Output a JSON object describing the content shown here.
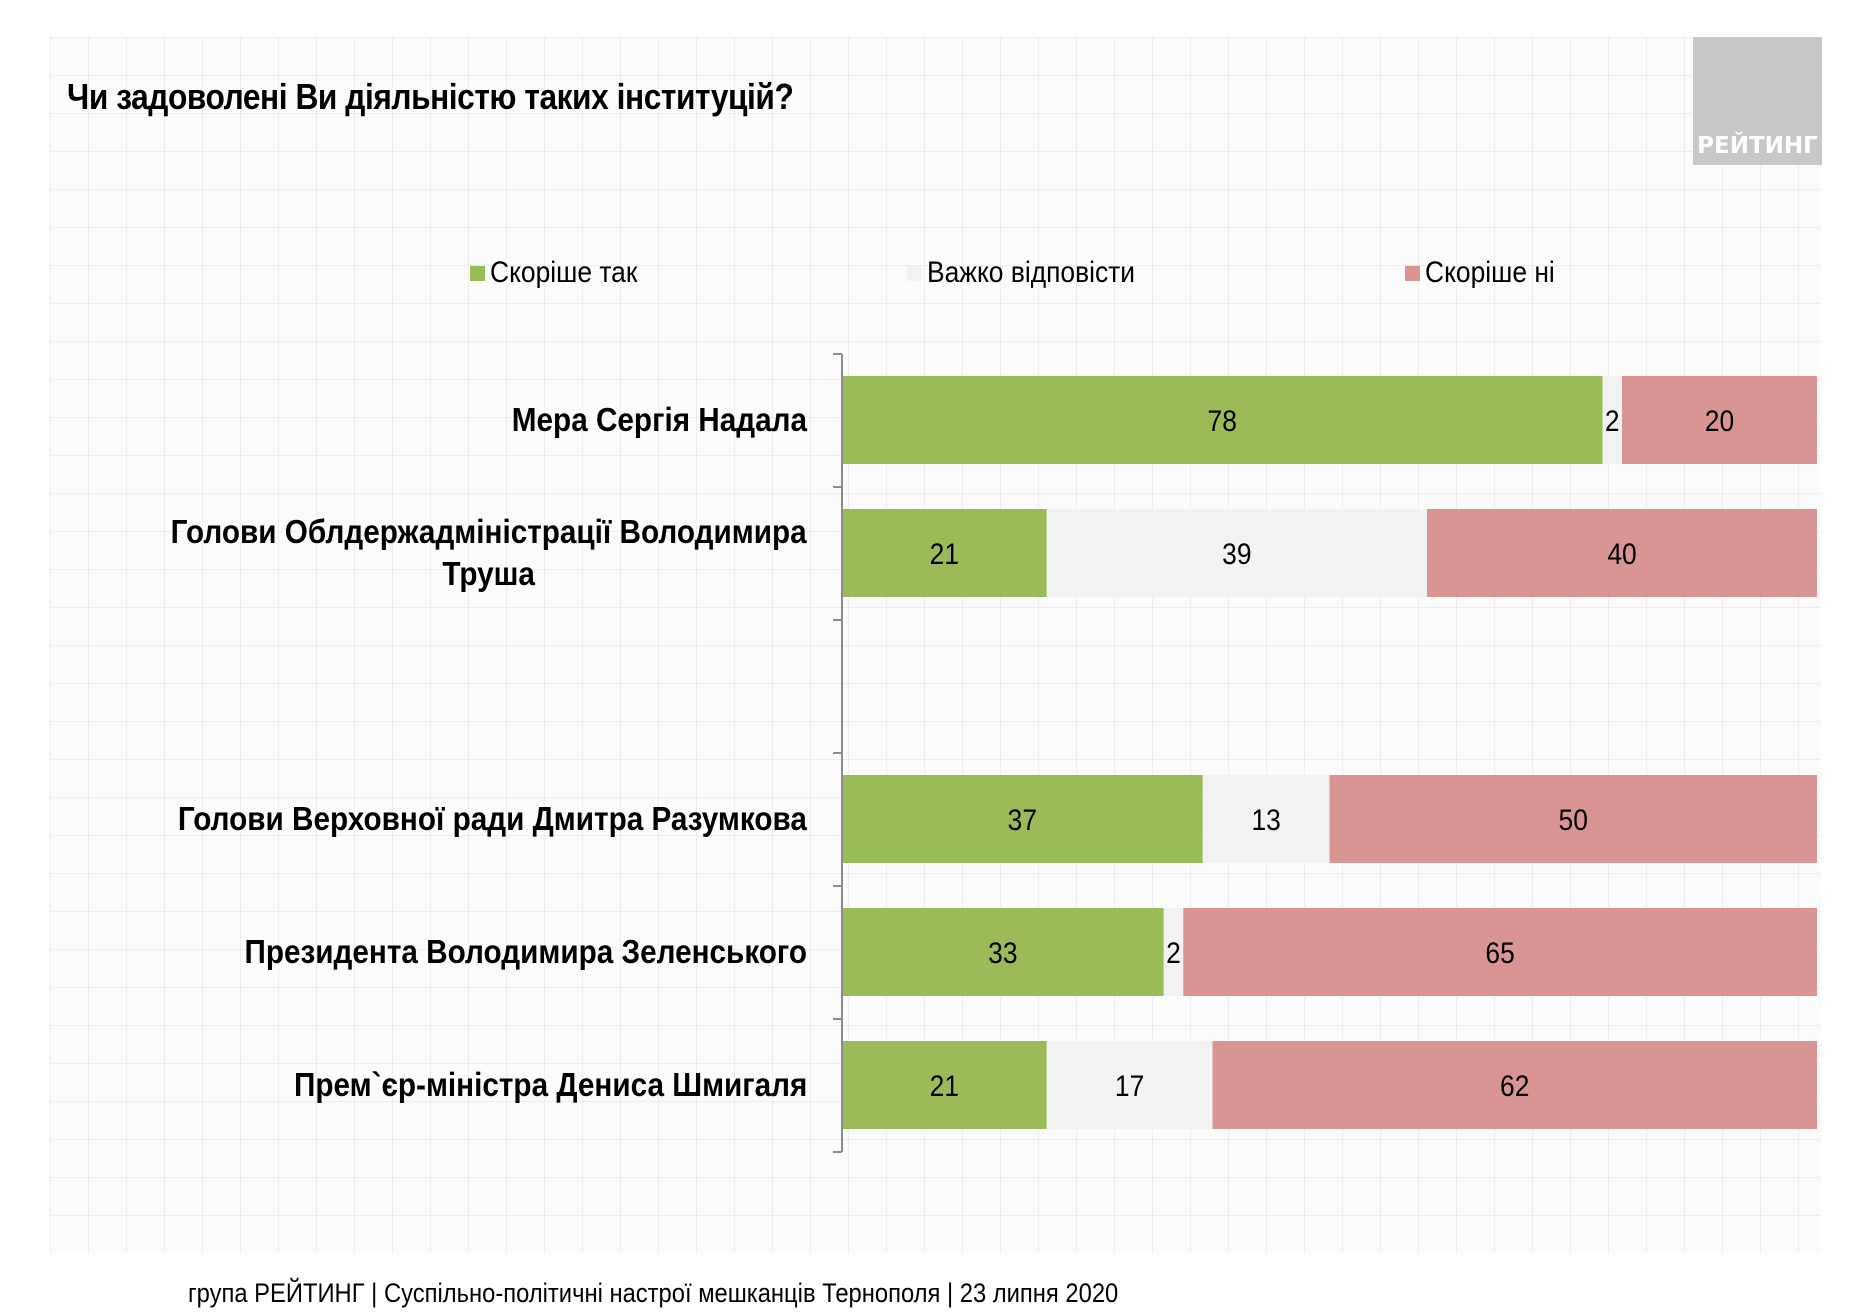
{
  "header": {
    "title": "Чи задоволені Ви діяльністю таких інституцій?",
    "logo_text": "РЕЙТИНГ"
  },
  "footer": {
    "text": "група РЕЙТИНГ | Суспільно-політичні настрої мешканців Тернополя | 23 липня 2020"
  },
  "colors": {
    "yes": "#9bbb59",
    "hard": "#f2f2f2",
    "no": "#d99594",
    "logo_bg": "#c8c8c8"
  },
  "chart_data": {
    "type": "bar",
    "orientation": "horizontal",
    "stacked": true,
    "title": "Чи задоволені Ви діяльністю таких інституцій?",
    "xlabel": "",
    "ylabel": "",
    "xlim": [
      0,
      100
    ],
    "legend_position": "top",
    "categories": [
      "Мера Сергія Надала",
      "Голови Облдержадміністрації Володимира Труша",
      "",
      "Голови Верховної ради Дмитра Разумкова",
      "Президента Володимира Зеленського",
      "Прем`єр-міністра Дениса Шмигаля"
    ],
    "category_lines": [
      [
        "Мера Сергія Надала"
      ],
      [
        "Голови Облдержадміністрації Володимира",
        "Труша"
      ],
      [],
      [
        "Голови Верховної ради Дмитра Разумкова"
      ],
      [
        "Президента Володимира Зеленського"
      ],
      [
        "Прем`єр-міністра Дениса Шмигаля"
      ]
    ],
    "series": [
      {
        "name": "Скоріше так",
        "color": "#9bbb59",
        "values": [
          78,
          21,
          null,
          37,
          33,
          21
        ]
      },
      {
        "name": "Важко відповісти",
        "color": "#f2f2f2",
        "values": [
          2,
          39,
          null,
          13,
          2,
          17
        ]
      },
      {
        "name": "Скоріше ні",
        "color": "#d99594",
        "values": [
          20,
          40,
          null,
          50,
          65,
          62
        ]
      }
    ],
    "grid": false
  }
}
